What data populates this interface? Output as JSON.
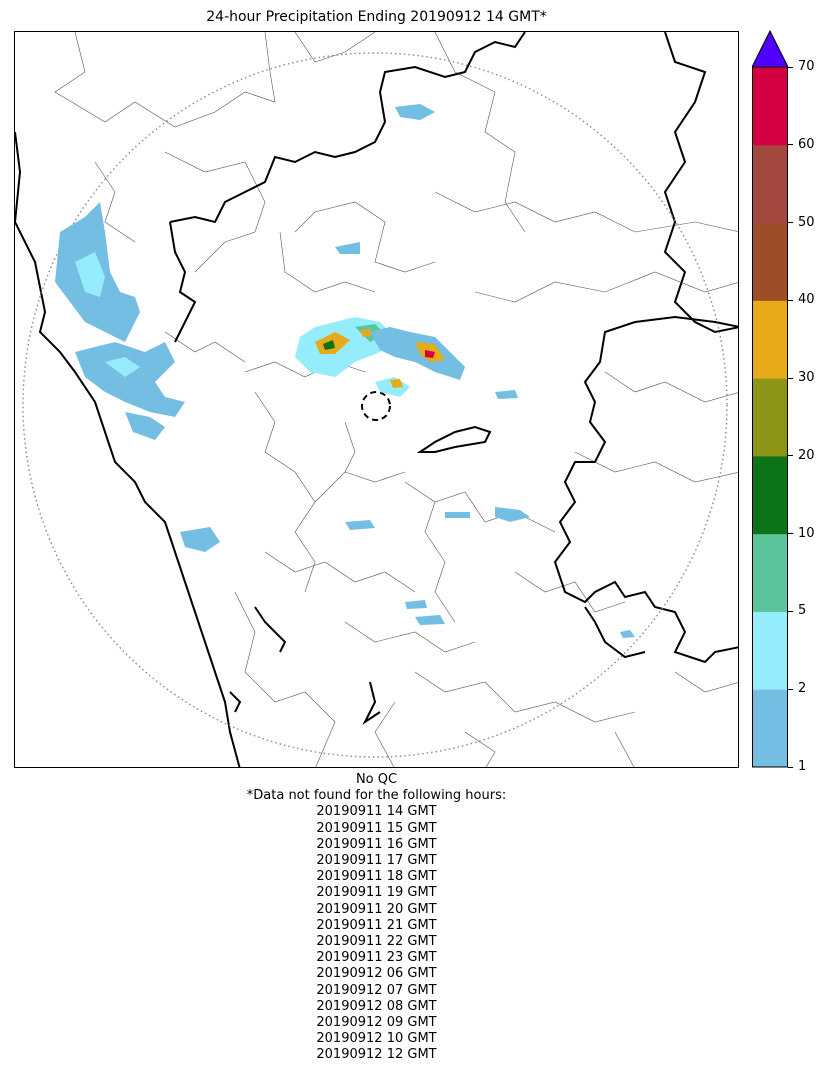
{
  "title": "24-hour Precipitation Ending 20190912 14 GMT*",
  "colorbar": {
    "ticks": [
      "1",
      "2",
      "5",
      "10",
      "20",
      "30",
      "40",
      "50",
      "60",
      "70"
    ],
    "colors": [
      "#74bde3",
      "#95ecfd",
      "#5cc49b",
      "#0d7319",
      "#8c9516",
      "#e7ab1a",
      "#9c4e28",
      "#a3483f",
      "#d50042"
    ],
    "extend_color": "#5000ff"
  },
  "map": {
    "radar_range_ring": "dotted",
    "radar_center_marker": "dashed-circle",
    "state_boundaries_color": "#000000",
    "district_boundaries_color": "#555555"
  },
  "notes": {
    "qc": "No QC",
    "missing_header": "*Data not found for the following hours:",
    "missing_hours": [
      "20190911 14 GMT",
      "20190911 15 GMT",
      "20190911 16 GMT",
      "20190911 17 GMT",
      "20190911 18 GMT",
      "20190911 19 GMT",
      "20190911 20 GMT",
      "20190911 21 GMT",
      "20190911 22 GMT",
      "20190911 23 GMT",
      "20190912 06 GMT",
      "20190912 07 GMT",
      "20190912 08 GMT",
      "20190912 09 GMT",
      "20190912 10 GMT",
      "20190912 12 GMT"
    ]
  }
}
